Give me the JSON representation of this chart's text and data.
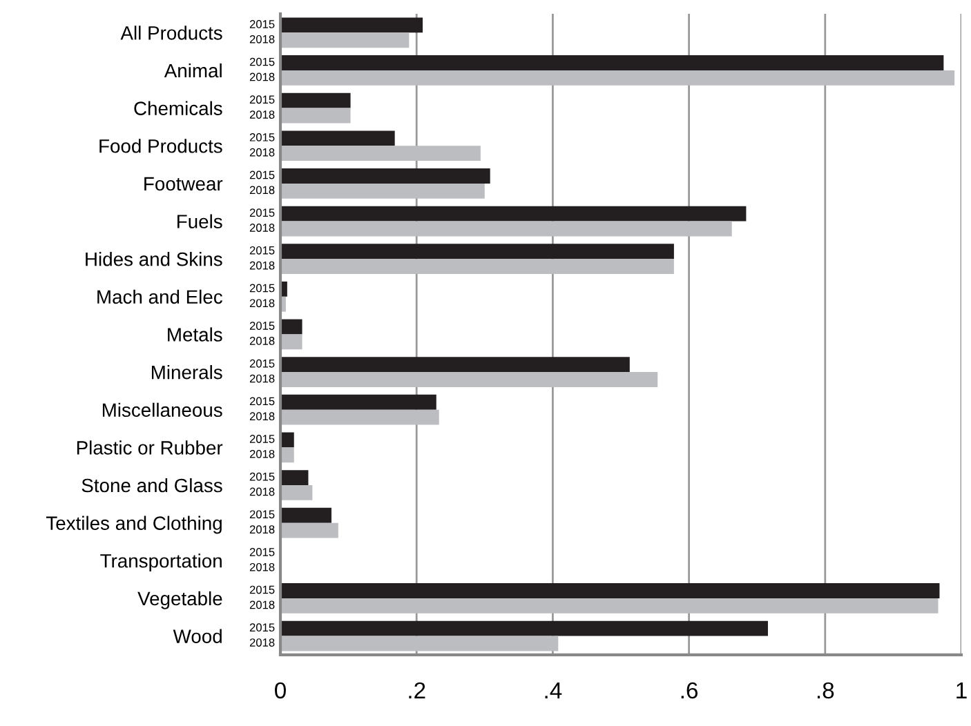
{
  "chart_data": {
    "type": "bar",
    "orientation": "horizontal",
    "categories": [
      "All Products",
      "Animal",
      "Chemicals",
      "Food Products",
      "Footwear",
      "Fuels",
      "Hides and Skins",
      "Mach and Elec",
      "Metals",
      "Minerals",
      "Miscellaneous",
      "Plastic or Rubber",
      "Stone and Glass",
      "Textiles and Clothing",
      "Transportation",
      "Vegetable",
      "Wood"
    ],
    "series": [
      {
        "name": "2015",
        "color": "#231f20",
        "values": [
          0.209,
          0.974,
          0.103,
          0.168,
          0.308,
          0.684,
          0.578,
          0.01,
          0.032,
          0.513,
          0.229,
          0.02,
          0.041,
          0.075,
          0,
          0.968,
          0.716
        ]
      },
      {
        "name": "2018",
        "color": "#bcbdc0",
        "values": [
          0.189,
          0.99,
          0.103,
          0.294,
          0.3,
          0.663,
          0.578,
          0.008,
          0.032,
          0.554,
          0.233,
          0.02,
          0.047,
          0.085,
          0,
          0.966,
          0.408
        ]
      }
    ],
    "xlim": [
      0,
      1
    ],
    "xticks": [
      0,
      {
        "value": 0.2,
        "label": ".2"
      },
      {
        "value": 0.4,
        "label": ".4"
      },
      {
        "value": 0.6,
        "label": ".6"
      },
      {
        "value": 0.8,
        "label": ".8"
      },
      1
    ],
    "grid": "x",
    "legend": false
  }
}
